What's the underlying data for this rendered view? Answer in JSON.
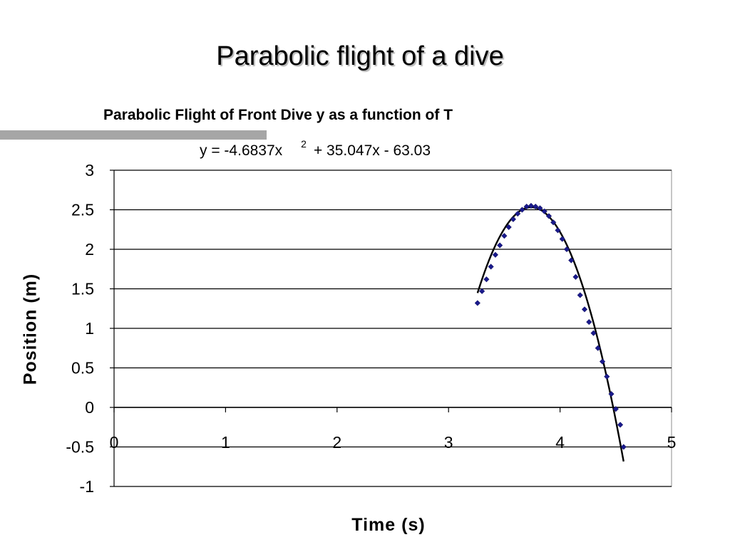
{
  "slide": {
    "title": "Parabolic flight of a dive"
  },
  "chart_data": {
    "type": "scatter",
    "title": "Parabolic Flight of Front Dive y as a function of T",
    "trendline": {
      "type": "polynomial",
      "a": -4.6837,
      "b": 35.047,
      "c": -63.03,
      "x_range": [
        3.26,
        4.57
      ],
      "equation_main": "y = -4.6837x",
      "equation_sup": "2",
      "equation_rest": "+ 35.047x - 63.03",
      "color": "#000000"
    },
    "xlabel": "Time (s)",
    "ylabel": "Position (m)",
    "xlim": [
      0,
      5
    ],
    "ylim": [
      -1,
      3
    ],
    "x_ticks": [
      0,
      1,
      2,
      3,
      4,
      5
    ],
    "y_ticks": [
      3,
      2.5,
      2,
      1.5,
      1,
      0.5,
      0,
      -0.5,
      -1
    ],
    "grid": "horizontal",
    "marker_color": "#1a1a8c",
    "series": [
      {
        "x": [
          3.26,
          3.3,
          3.34,
          3.38,
          3.42,
          3.46,
          3.5,
          3.54,
          3.58,
          3.62,
          3.66,
          3.7,
          3.74,
          3.78,
          3.82,
          3.86,
          3.9,
          3.94,
          3.98,
          4.02,
          4.06,
          4.1,
          4.14,
          4.18,
          4.22,
          4.26,
          4.3,
          4.34,
          4.38,
          4.42,
          4.46,
          4.5,
          4.54,
          4.57
        ],
        "y": [
          1.32,
          1.47,
          1.62,
          1.78,
          1.93,
          2.05,
          2.17,
          2.28,
          2.38,
          2.45,
          2.5,
          2.54,
          2.55,
          2.54,
          2.52,
          2.48,
          2.42,
          2.34,
          2.24,
          2.13,
          2.0,
          1.86,
          1.65,
          1.42,
          1.24,
          1.08,
          0.94,
          0.75,
          0.58,
          0.39,
          0.17,
          -0.02,
          -0.22,
          -0.5
        ]
      }
    ]
  }
}
